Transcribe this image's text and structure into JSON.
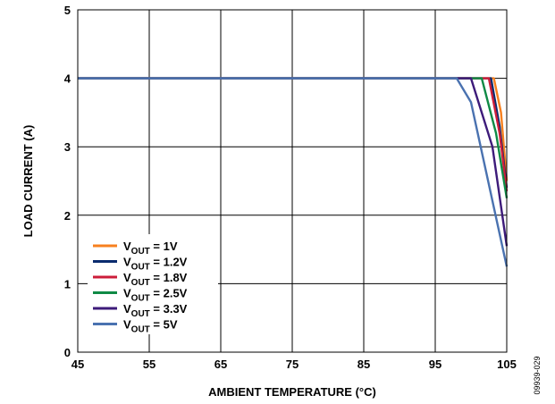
{
  "chart_data": {
    "type": "line",
    "xlabel": "AMBIENT TEMPERATURE (°C)",
    "ylabel": "LOAD CURRENT (A)",
    "xlim": [
      45,
      105
    ],
    "ylim": [
      0,
      5
    ],
    "xticks": [
      "45",
      "55",
      "65",
      "75",
      "85",
      "95",
      "105"
    ],
    "yticks": [
      "0",
      "1",
      "2",
      "3",
      "4",
      "5"
    ],
    "grid": true,
    "legend_placement": "bottom-left",
    "series": [
      {
        "name": "VOUT = 1V",
        "label_main": "V",
        "label_sub": "OUT",
        "label_rest": " = 1V",
        "color": "#f7801f",
        "x": [
          45,
          103.2,
          104.2,
          105
        ],
        "y": [
          4,
          4,
          3.5,
          2.5
        ]
      },
      {
        "name": "VOUT = 1.2V",
        "label_main": "V",
        "label_sub": "OUT",
        "label_rest": " = 1.2V",
        "color": "#0a2b6e",
        "x": [
          45,
          102.8,
          104.0,
          105
        ],
        "y": [
          4,
          4,
          3.3,
          2.4
        ]
      },
      {
        "name": "VOUT = 1.8V",
        "label_main": "V",
        "label_sub": "OUT",
        "label_rest": " = 1.8V",
        "color": "#cc1d3a",
        "x": [
          45,
          102.5,
          104.0,
          105
        ],
        "y": [
          4,
          4,
          3.2,
          2.35
        ]
      },
      {
        "name": "VOUT = 2.5V",
        "label_main": "V",
        "label_sub": "OUT",
        "label_rest": " = 2.5V",
        "color": "#0f8a45",
        "x": [
          45,
          101.5,
          103.5,
          105
        ],
        "y": [
          4,
          4,
          3.2,
          2.25
        ]
      },
      {
        "name": "VOUT = 3.3V",
        "label_main": "V",
        "label_sub": "OUT",
        "label_rest": " = 3.3V",
        "color": "#3d1b7a",
        "x": [
          45,
          100.0,
          103.0,
          105
        ],
        "y": [
          4,
          4,
          3.0,
          1.55
        ]
      },
      {
        "name": "VOUT = 5V",
        "label_main": "V",
        "label_sub": "OUT",
        "label_rest": " = 5V",
        "color": "#4a72b0",
        "x": [
          45,
          98.0,
          100.0,
          105
        ],
        "y": [
          4,
          4,
          3.65,
          1.25
        ]
      }
    ]
  },
  "figure_id": "09939-029"
}
